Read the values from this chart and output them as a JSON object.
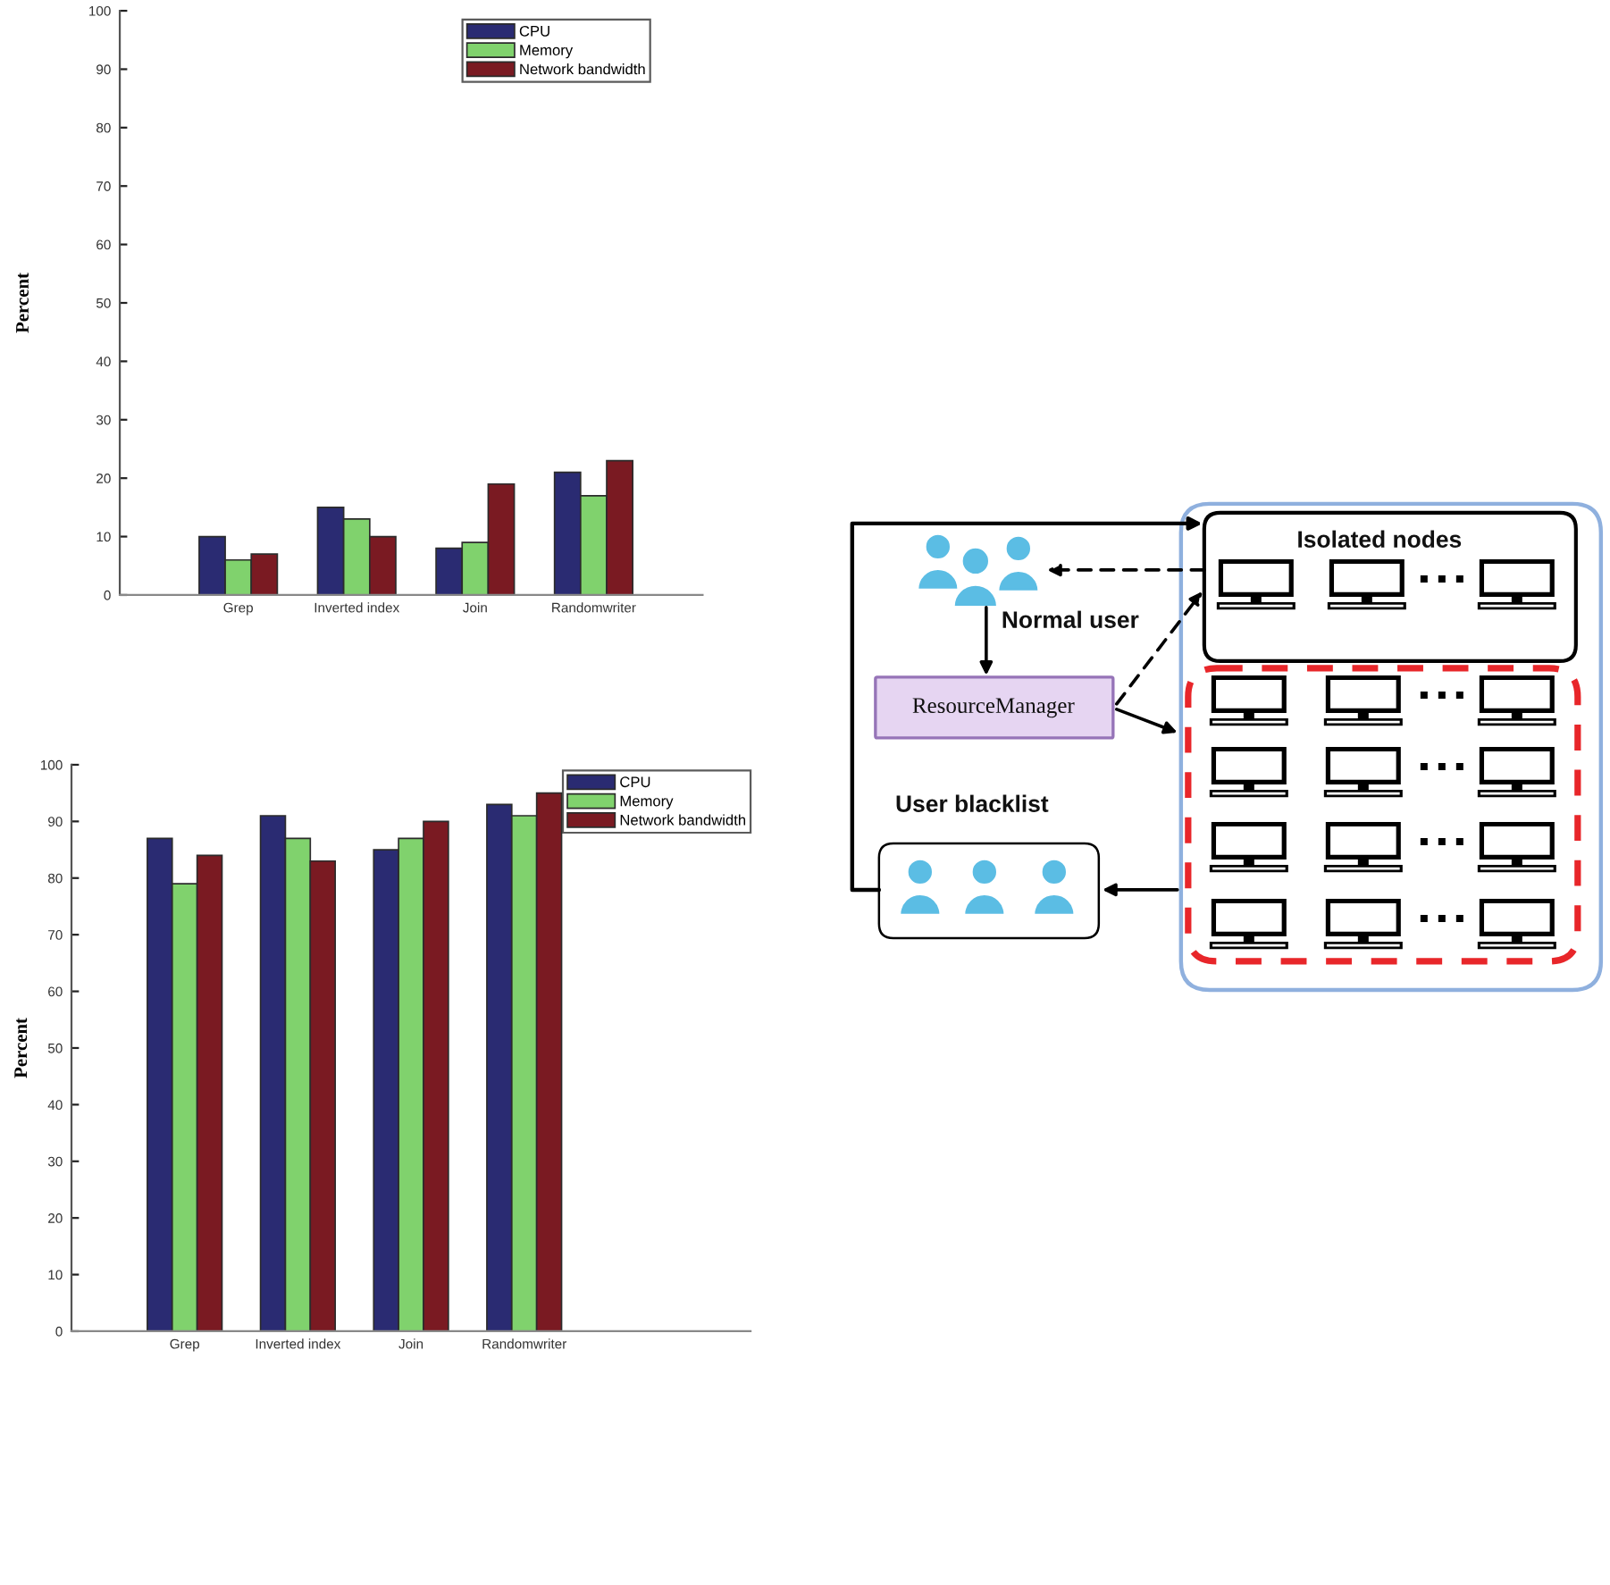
{
  "chart_data": [
    {
      "type": "bar",
      "ylabel": "Percent",
      "categories": [
        "Grep",
        "Inverted index",
        "Join",
        "Randomwriter"
      ],
      "series": [
        {
          "name": "CPU",
          "color": "#2a2b72",
          "values": [
            10,
            15,
            8,
            21
          ]
        },
        {
          "name": "Memory",
          "color": "#80d26d",
          "values": [
            6,
            13,
            9,
            17
          ]
        },
        {
          "name": "Network bandwidth",
          "color": "#7a1a22",
          "values": [
            7,
            10,
            19,
            23
          ]
        }
      ],
      "ylim": [
        0,
        100
      ],
      "yticks": [
        0,
        10,
        20,
        30,
        40,
        50,
        60,
        70,
        80,
        90,
        100
      ],
      "legend": "top right"
    },
    {
      "type": "bar",
      "ylabel": "Percent",
      "categories": [
        "Grep",
        "Inverted index",
        "Join",
        "Randomwriter"
      ],
      "series": [
        {
          "name": "CPU",
          "color": "#2a2b72",
          "values": [
            87,
            91,
            85,
            93
          ]
        },
        {
          "name": "Memory",
          "color": "#80d26d",
          "values": [
            79,
            87,
            87,
            91
          ]
        },
        {
          "name": "Network bandwidth",
          "color": "#7a1a22",
          "values": [
            84,
            83,
            90,
            95
          ]
        }
      ],
      "ylim": [
        0,
        100
      ],
      "yticks": [
        0,
        10,
        20,
        30,
        40,
        50,
        60,
        70,
        80,
        90,
        100
      ],
      "legend": "top right"
    },
    {
      "type": "other",
      "annotations": [
        "Isolated nodes",
        "Normal user",
        "ResourceManager",
        "User blacklist"
      ]
    }
  ]
}
